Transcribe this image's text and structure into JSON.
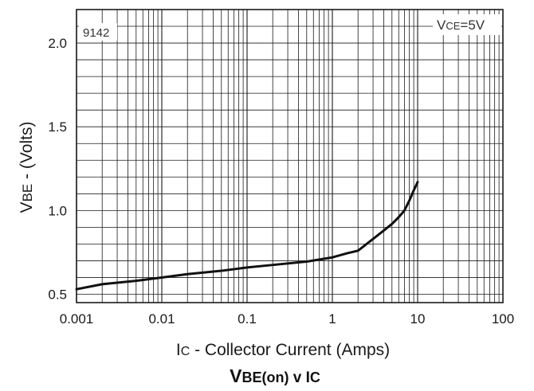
{
  "chart_data": {
    "type": "line",
    "x_scale": "log",
    "xlim": [
      0.001,
      100
    ],
    "ylim": [
      0.45,
      2.2
    ],
    "grid": true,
    "xticks": [
      0.001,
      0.01,
      0.1,
      1,
      10,
      100
    ],
    "xtick_labels": [
      "0.001",
      "0.01",
      "0.1",
      "1",
      "10",
      "100"
    ],
    "yticks": [
      0.5,
      1.0,
      1.5,
      2.0
    ],
    "ytick_labels": [
      "0.5",
      "1.0",
      "1.5",
      "2.0"
    ],
    "xlabel": {
      "prefix": "I",
      "sub": "C",
      "rest": " - Collector Current (Amps)"
    },
    "ylabel": {
      "prefix": "V",
      "sub": "BE",
      "rest": " - (Volts)"
    },
    "title": {
      "part1": "V",
      "part2": "BE(on)",
      "part3": " v I",
      "part4": "C"
    },
    "annotations": {
      "code": "9142",
      "condition": {
        "prefix": "V",
        "sub": "CE",
        "rest": "=5V"
      }
    },
    "series": [
      {
        "color": "#111111",
        "x": [
          0.001,
          0.002,
          0.005,
          0.01,
          0.02,
          0.05,
          0.1,
          0.2,
          0.5,
          1,
          1.5,
          2,
          3,
          4,
          5,
          6,
          7,
          8,
          9,
          10
        ],
        "y": [
          0.53,
          0.56,
          0.58,
          0.6,
          0.62,
          0.64,
          0.66,
          0.675,
          0.695,
          0.72,
          0.745,
          0.76,
          0.83,
          0.88,
          0.92,
          0.96,
          1.0,
          1.06,
          1.12,
          1.17
        ]
      }
    ]
  }
}
